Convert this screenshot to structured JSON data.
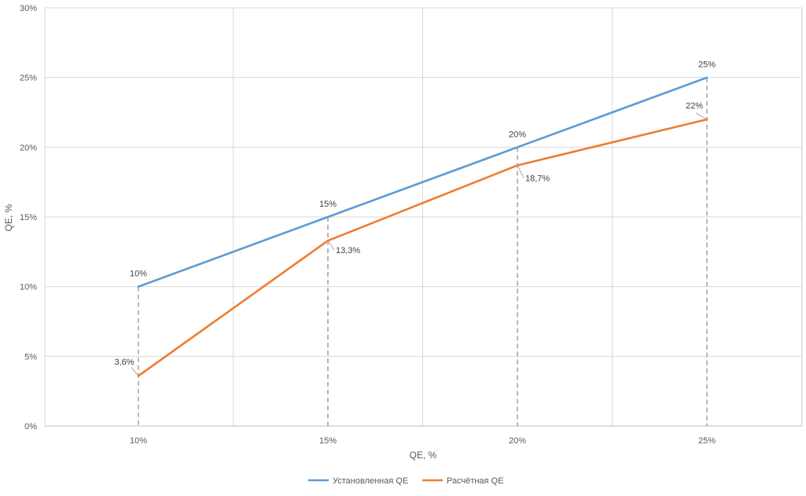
{
  "chart_data": {
    "type": "line",
    "title": "",
    "xlabel": "QE, %",
    "ylabel": "QE, %",
    "categories": [
      "10%",
      "15%",
      "20%",
      "25%"
    ],
    "ylim": [
      0,
      30
    ],
    "yticks": [
      0,
      5,
      10,
      15,
      20,
      25,
      30
    ],
    "ytick_labels": [
      "0%",
      "5%",
      "10%",
      "15%",
      "20%",
      "25%",
      "30%"
    ],
    "grid": true,
    "legend_position": "bottom",
    "drop_lines": true,
    "series": [
      {
        "name": "Установленная QE",
        "color": "#5B9BD5",
        "values": [
          10,
          15,
          20,
          25
        ],
        "labels": [
          "10%",
          "15%",
          "20%",
          "25%"
        ]
      },
      {
        "name": "Расчётная QE",
        "color": "#ED7D31",
        "values": [
          3.6,
          13.3,
          18.7,
          22
        ],
        "labels": [
          "3,6%",
          "13,3%",
          "18,7%",
          "22%"
        ]
      }
    ]
  }
}
